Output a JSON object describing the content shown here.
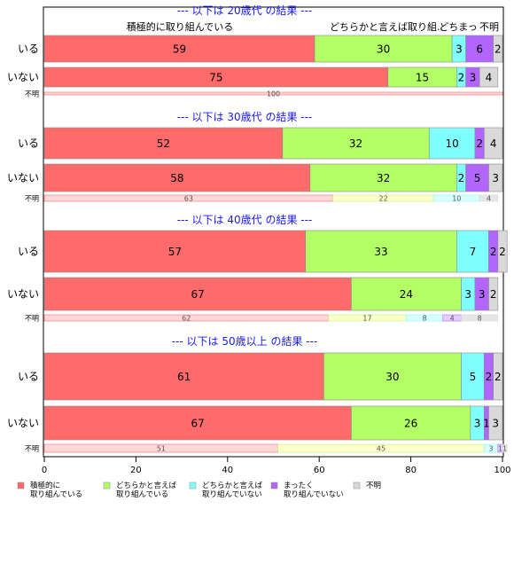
{
  "chart_data": {
    "type": "bar",
    "orientation": "horizontal-stacked-percent",
    "category_headers": [
      "積極的に取り組んでいる",
      "どちらかと言えば取り組..",
      "どちまっ",
      "不明"
    ],
    "legend": [
      {
        "label_lines": [
          "積極的に",
          "取り組んでいる"
        ],
        "color": "#ff6b6b"
      },
      {
        "label_lines": [
          "どちらかと言えば",
          "取り組んでいる"
        ],
        "color": "#b3ff66"
      },
      {
        "label_lines": [
          "どちらかと言えば",
          "取り組んでいない"
        ],
        "color": "#80ffff"
      },
      {
        "label_lines": [
          "まったく",
          "取り組んでいない"
        ],
        "color": "#b366ff"
      },
      {
        "label_lines": [
          "不明"
        ],
        "color": "#d9d9d9"
      }
    ],
    "xlim": [
      0,
      100
    ],
    "xticks": [
      0,
      20,
      40,
      60,
      80,
      100
    ],
    "panels": [
      {
        "title": "--- 以下は 20歳代 の結果 ---",
        "rows": [
          {
            "label": "いる",
            "values": [
              59,
              30,
              3,
              6,
              2
            ]
          },
          {
            "label": "いない",
            "values": [
              75,
              15,
              2,
              3,
              4
            ]
          },
          {
            "label": "不明",
            "values": [
              100,
              0,
              0,
              0,
              0
            ],
            "small": true
          }
        ]
      },
      {
        "title": "--- 以下は 30歳代 の結果 ---",
        "rows": [
          {
            "label": "いる",
            "values": [
              52,
              32,
              10,
              2,
              4
            ]
          },
          {
            "label": "いない",
            "values": [
              58,
              32,
              2,
              5,
              3
            ]
          },
          {
            "label": "不明",
            "values": [
              63,
              22,
              10,
              0,
              4
            ],
            "small": true
          }
        ]
      },
      {
        "title": "--- 以下は 40歳代 の結果 ---",
        "rows": [
          {
            "label": "いる",
            "values": [
              57,
              33,
              7,
              2,
              2
            ]
          },
          {
            "label": "いない",
            "values": [
              67,
              24,
              3,
              3,
              2
            ]
          },
          {
            "label": "不明",
            "values": [
              62,
              17,
              8,
              4,
              8
            ],
            "small": true
          }
        ]
      },
      {
        "title": "--- 以下は 50歳以上 の結果 ---",
        "rows": [
          {
            "label": "いる",
            "values": [
              61,
              30,
              5,
              2,
              2
            ]
          },
          {
            "label": "いない",
            "values": [
              67,
              26,
              3,
              1,
              3
            ]
          },
          {
            "label": "不明",
            "values": [
              51,
              45,
              3,
              1,
              1
            ],
            "small": true
          }
        ]
      }
    ]
  }
}
